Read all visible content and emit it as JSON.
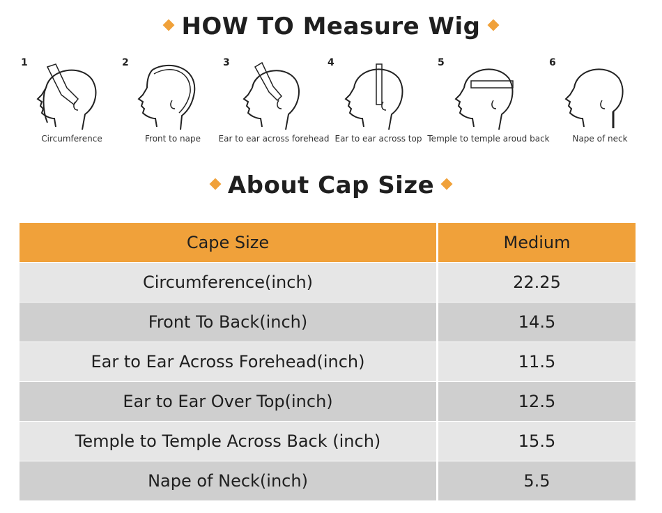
{
  "title_measure": "HOW TO Measure Wig",
  "title_cap": "About Cap Size",
  "accent_color": "#f0a13a",
  "steps": [
    {
      "num": "1",
      "caption": "Circumference"
    },
    {
      "num": "2",
      "caption": "Front to nape"
    },
    {
      "num": "3",
      "caption": "Ear to ear across forehead"
    },
    {
      "num": "4",
      "caption": "Ear to ear across top"
    },
    {
      "num": "5",
      "caption": "Temple to temple aroud back"
    },
    {
      "num": "6",
      "caption": "Nape of neck"
    }
  ],
  "table": {
    "headers": [
      "Cape Size",
      "Medium"
    ],
    "rows": [
      [
        "Circumference(inch)",
        "22.25"
      ],
      [
        "Front To Back(inch)",
        "14.5"
      ],
      [
        "Ear to Ear Across Forehead(inch)",
        "11.5"
      ],
      [
        "Ear to Ear Over Top(inch)",
        "12.5"
      ],
      [
        "Temple to Temple Across Back (inch)",
        "15.5"
      ],
      [
        "Nape of Neck(inch)",
        "5.5"
      ]
    ]
  }
}
